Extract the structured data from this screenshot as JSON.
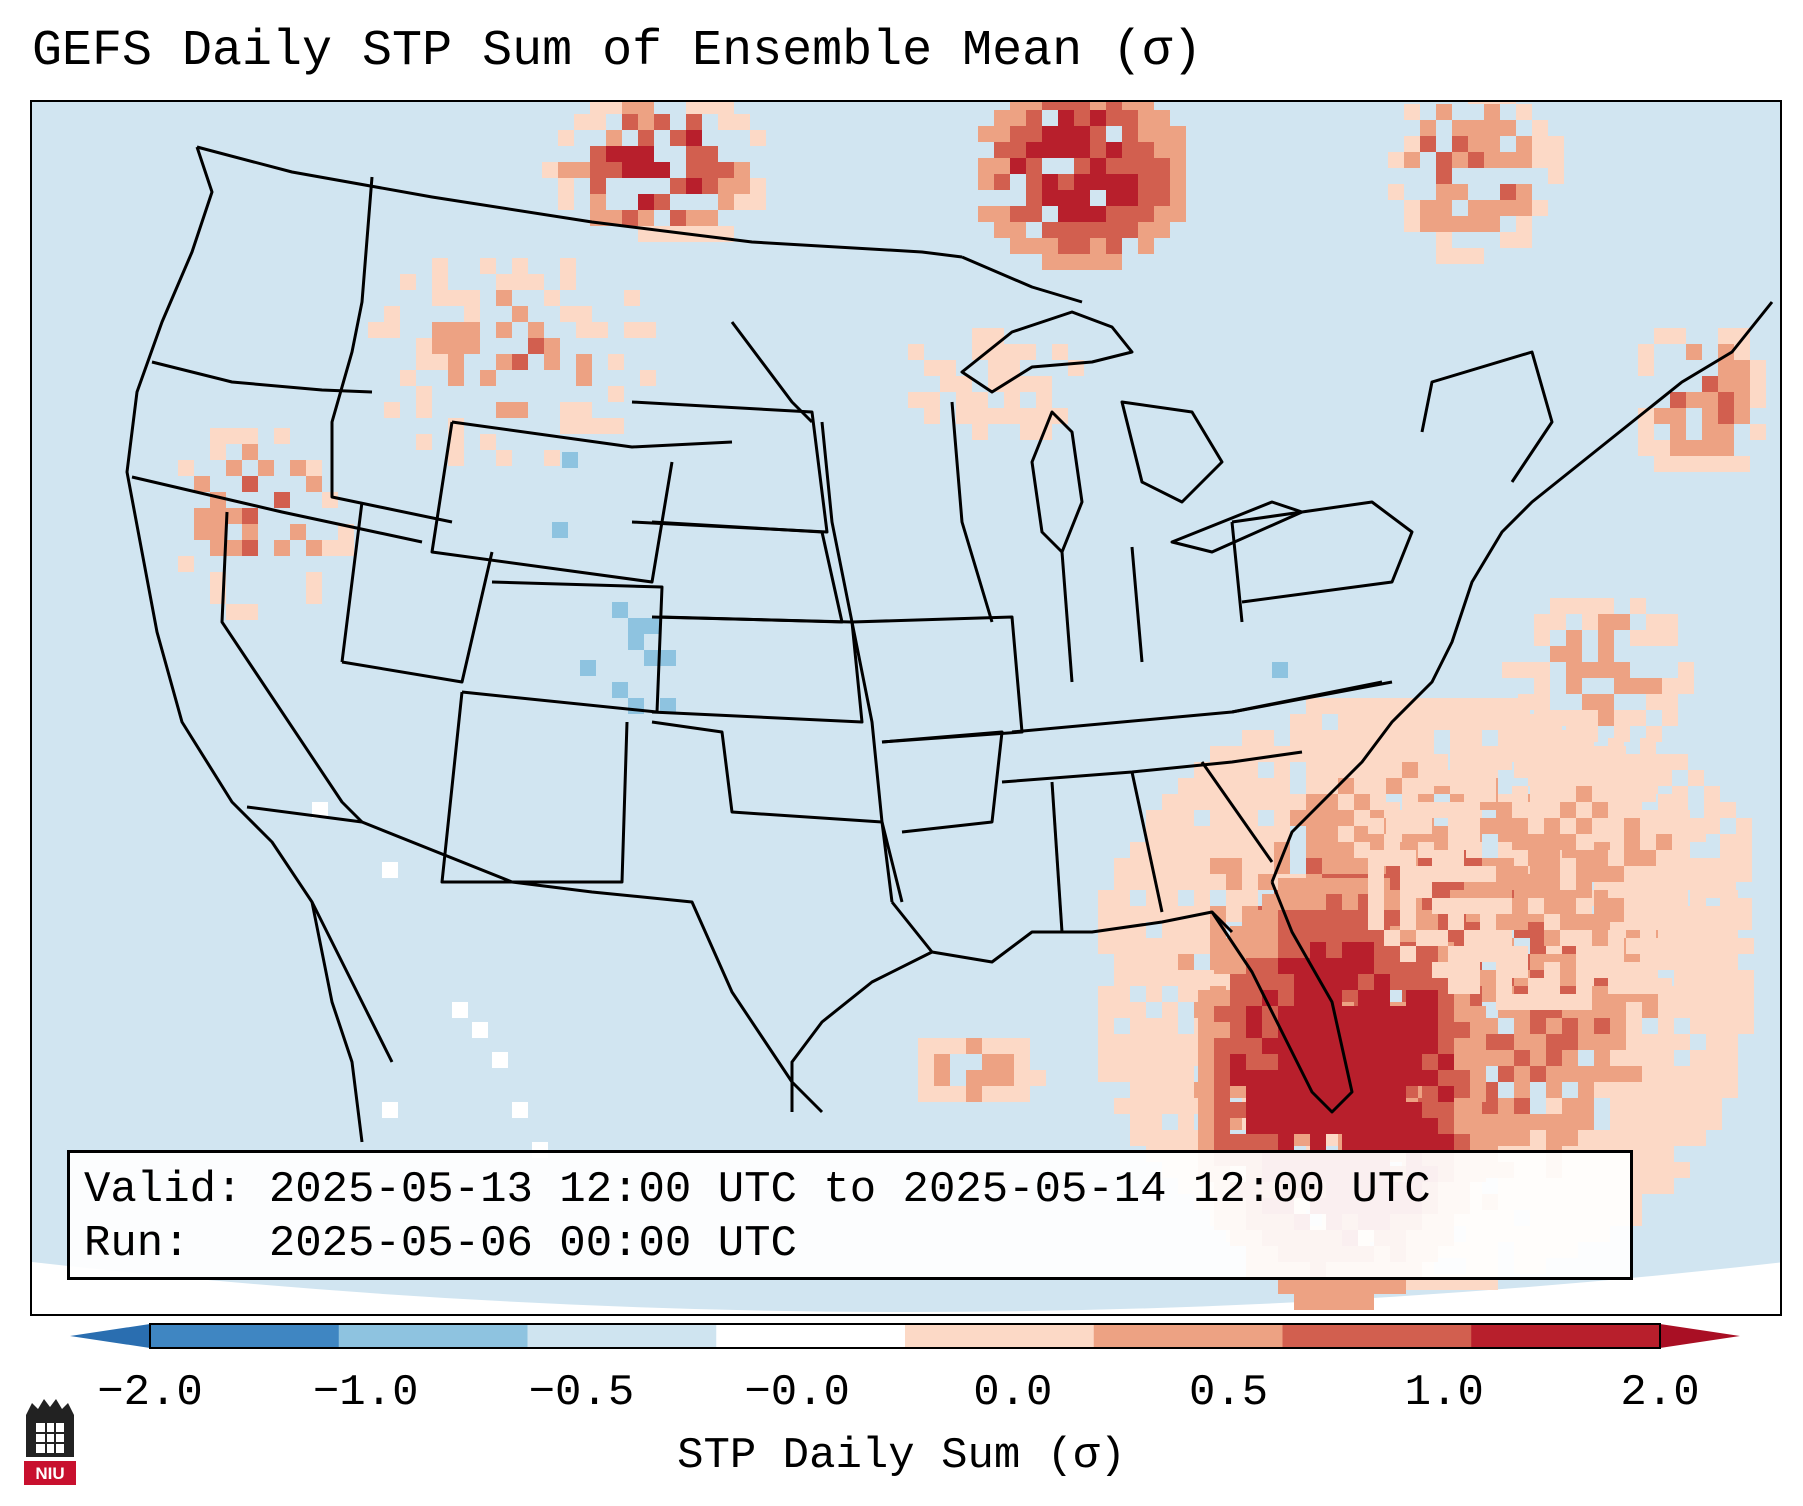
{
  "title": "GEFS Daily STP Sum of Ensemble Mean (σ)",
  "info": {
    "valid_label": "Valid:",
    "valid_value": "2025-05-13 12:00 UTC to 2025-05-14 12:00 UTC",
    "run_label": "Run:",
    "run_value": "2025-05-06 00:00 UTC"
  },
  "colorbar": {
    "label": "STP Daily Sum (σ)",
    "ticks": [
      "−2.0",
      "−1.0",
      "−0.5",
      "−0.0",
      "0.0",
      "0.5",
      "1.0",
      "2.0"
    ],
    "colors": [
      "#3f86c2",
      "#8ec3e0",
      "#cfe4f0",
      "#ffffff",
      "#fcd9c6",
      "#eda283",
      "#d25f4f",
      "#b81f2c"
    ],
    "extend_low_color": "#2a6eb0",
    "extend_high_color": "#a90f24"
  },
  "map": {
    "region": "Continental United States",
    "background_color": "#d1e5f1",
    "outline_color": "#000000"
  },
  "logo": {
    "text": "NIU",
    "color": "#c8102e"
  }
}
